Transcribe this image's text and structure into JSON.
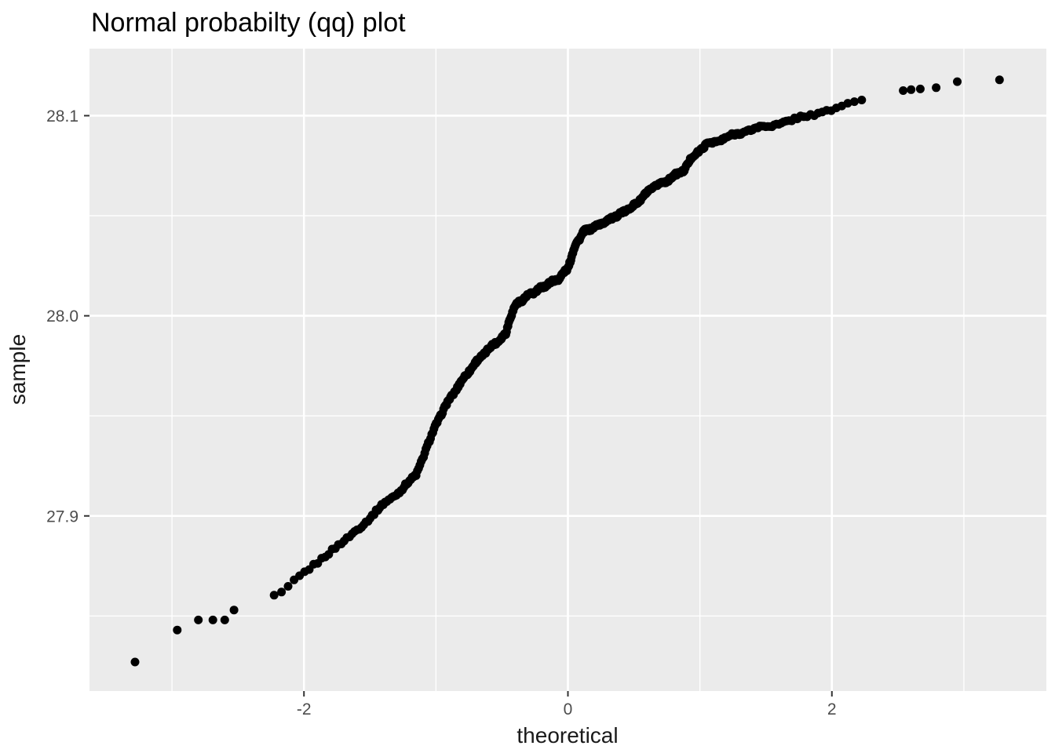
{
  "chart_data": {
    "type": "scatter",
    "subtype": "normal-qq-plot",
    "title": "Normal probabilty (qq) plot",
    "xlabel": "theoretical",
    "ylabel": "sample",
    "legend_position": "none",
    "grid": true,
    "xlim": [
      -3.625,
      3.625
    ],
    "ylim": [
      27.8125,
      28.1335
    ],
    "x_tick_labels": [
      "-2",
      "0",
      "2"
    ],
    "x_tick_values": [
      -2,
      0,
      2
    ],
    "x_minor_tick_values": [
      -3,
      -1,
      1,
      3
    ],
    "y_tick_labels": [
      "27.9",
      "28.0",
      "28.1"
    ],
    "y_tick_values": [
      27.9,
      28.0,
      28.1
    ],
    "y_minor_tick_values": [
      27.85,
      27.95,
      28.05
    ],
    "n_points": 500,
    "point_radius_px": 5.5,
    "colors": {
      "panel_bg": "#EBEBEB",
      "grid_major": "#FFFFFF",
      "grid_minor": "#FFFFFF",
      "point": "#000000",
      "tick_label": "#4D4D4D",
      "tick_mark": "#333333",
      "title": "#000000"
    },
    "qq_curve_anchors": [
      [
        -3.3,
        27.826
      ],
      [
        -2.96,
        27.843
      ],
      [
        -2.8,
        27.848
      ],
      [
        -2.6,
        27.848
      ],
      [
        -2.53,
        27.853
      ],
      [
        -2.45,
        27.856
      ],
      [
        -2.37,
        27.857
      ],
      [
        -2.3,
        27.858
      ],
      [
        -2.22,
        27.86
      ],
      [
        -2.15,
        27.862
      ],
      [
        -2.1,
        27.866
      ],
      [
        -2.0,
        27.872
      ],
      [
        -1.86,
        27.879
      ],
      [
        -1.68,
        27.888
      ],
      [
        -1.62,
        27.892
      ],
      [
        -1.5,
        27.899
      ],
      [
        -1.38,
        27.907
      ],
      [
        -1.26,
        27.913
      ],
      [
        -1.15,
        27.921
      ],
      [
        -1.08,
        27.932
      ],
      [
        -1.0,
        27.946
      ],
      [
        -0.9,
        27.958
      ],
      [
        -0.82,
        27.966
      ],
      [
        -0.72,
        27.975
      ],
      [
        -0.61,
        27.983
      ],
      [
        -0.52,
        27.988
      ],
      [
        -0.47,
        27.991
      ],
      [
        -0.44,
        27.999
      ],
      [
        -0.4,
        28.005
      ],
      [
        -0.33,
        28.009
      ],
      [
        -0.25,
        28.012
      ],
      [
        -0.15,
        28.016
      ],
      [
        -0.06,
        28.019
      ],
      [
        0.0,
        28.024
      ],
      [
        0.06,
        28.036
      ],
      [
        0.12,
        28.042
      ],
      [
        0.22,
        28.045
      ],
      [
        0.37,
        28.05
      ],
      [
        0.5,
        28.055
      ],
      [
        0.64,
        28.064
      ],
      [
        0.76,
        28.068
      ],
      [
        0.88,
        28.073
      ],
      [
        0.94,
        28.079
      ],
      [
        1.0,
        28.083
      ],
      [
        1.06,
        28.086
      ],
      [
        1.12,
        28.087
      ],
      [
        1.24,
        28.09
      ],
      [
        1.33,
        28.092
      ],
      [
        1.45,
        28.094
      ],
      [
        1.6,
        28.096
      ],
      [
        1.76,
        28.099
      ],
      [
        1.9,
        28.101
      ],
      [
        2.02,
        28.104
      ],
      [
        2.16,
        28.107
      ],
      [
        2.32,
        28.109
      ],
      [
        2.47,
        28.112
      ],
      [
        2.6,
        28.113
      ],
      [
        2.79,
        28.114
      ],
      [
        2.95,
        28.117
      ],
      [
        3.3,
        28.118
      ]
    ],
    "observed_tail_quantiles_left": [
      -3.28,
      -2.96,
      -2.8,
      -2.69,
      -2.6,
      -2.53
    ],
    "observed_tail_quantiles_right": [
      3.27,
      2.95,
      2.79,
      2.67,
      2.6,
      2.54
    ]
  }
}
